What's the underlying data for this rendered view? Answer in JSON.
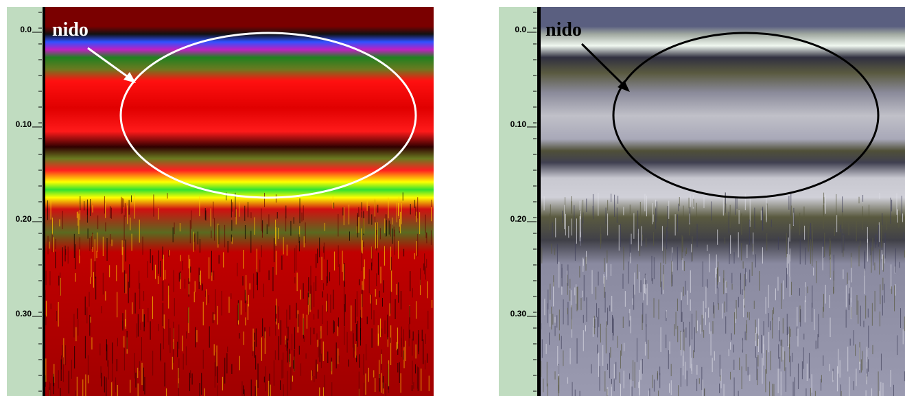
{
  "panels": [
    {
      "depth_labels": [
        "0.0",
        "0.10",
        "0.20",
        "0.30"
      ],
      "annotation": "nido"
    },
    {
      "depth_labels": [
        "0.0",
        "0.10",
        "0.20",
        "0.30"
      ],
      "annotation": "nido"
    }
  ]
}
